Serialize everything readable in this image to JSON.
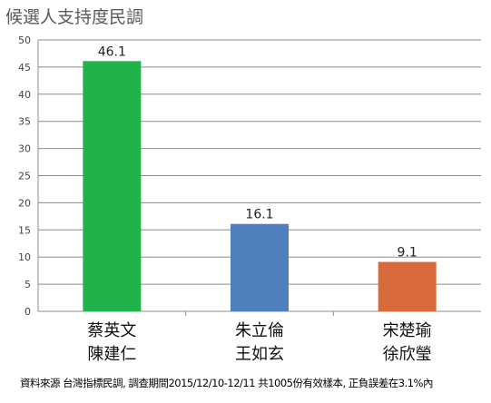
{
  "chart_data": {
    "type": "bar",
    "title": "候選人支持度民調",
    "categories": [
      [
        "蔡英文",
        "陳建仁"
      ],
      [
        "朱立倫",
        "王如玄"
      ],
      [
        "宋楚瑜",
        "徐欣瑩"
      ]
    ],
    "values": [
      46.1,
      16.1,
      9.1
    ],
    "data_labels": [
      "46.1",
      "16.1",
      "9.1"
    ],
    "bar_colors": [
      "#21b24b",
      "#4f80bd",
      "#d8693a"
    ],
    "ylim": [
      0,
      50
    ],
    "yticks": [
      0,
      5,
      10,
      15,
      20,
      25,
      30,
      35,
      40,
      45,
      50
    ],
    "grid": true,
    "xlabel": "",
    "ylabel": ""
  },
  "source": "資料來源 台灣指標民調, 調查期間2015/12/10-12/11 共1005份有效樣本, 正負誤差在3.1%內"
}
